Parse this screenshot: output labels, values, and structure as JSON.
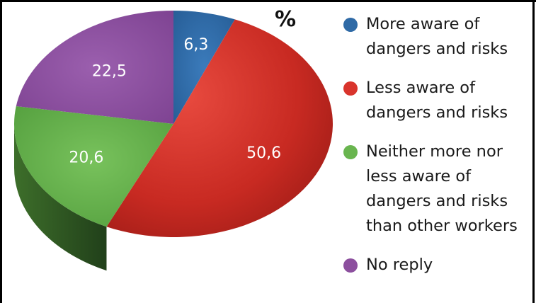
{
  "unit_label": "%",
  "colors": {
    "more_aware": "#2f6aa6",
    "less_aware": "#d9342c",
    "neither": "#69b54f",
    "no_reply": "#8c4f9e"
  },
  "legend": [
    {
      "label": "More aware of\ndangers and risks",
      "color": "#2f6aa6"
    },
    {
      "label": "Less aware of\ndangers and risks",
      "color": "#d9342c"
    },
    {
      "label": "Neither more nor\nless aware of\ndangers and risks\nthan other workers",
      "color": "#69b54f"
    },
    {
      "label": "No reply",
      "color": "#8c4f9e"
    }
  ],
  "chart_data": {
    "type": "pie",
    "title": "",
    "unit": "%",
    "slices": [
      {
        "name": "More aware of dangers and risks",
        "value": 6.3,
        "label": "6,3",
        "color": "#2f6aa6"
      },
      {
        "name": "Less aware of dangers and risks",
        "value": 50.6,
        "label": "50,6",
        "color": "#d9342c"
      },
      {
        "name": "Neither more nor less aware of dangers and risks than other workers",
        "value": 20.6,
        "label": "20,6",
        "color": "#69b54f"
      },
      {
        "name": "No reply",
        "value": 22.5,
        "label": "22,5",
        "color": "#8c4f9e"
      }
    ],
    "legend_position": "right",
    "style": "3d"
  }
}
